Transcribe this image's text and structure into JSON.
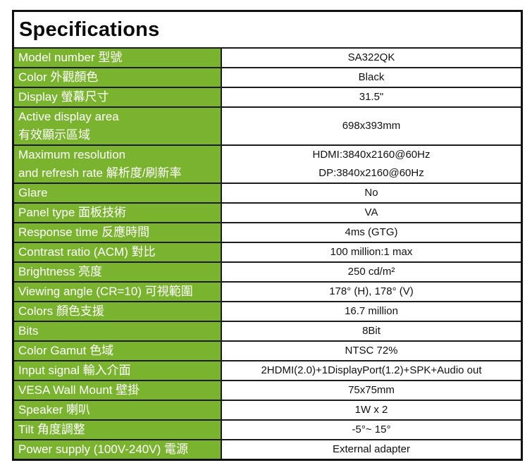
{
  "title": "Specifications",
  "colors": {
    "row_green": "#7AB42F",
    "row_border": "#1C1C1C",
    "outer_border": "#111111",
    "label_text": "#FFFFFF",
    "value_text": "#111111"
  },
  "table": {
    "rows": [
      {
        "label": "Model number 型號",
        "value": "SA322QK"
      },
      {
        "label": "Color 外觀顏色",
        "value": "Black"
      },
      {
        "label": "Display 螢幕尺寸",
        "value": "31.5\""
      },
      {
        "label": "Active display area\n有效顯示區域",
        "value": "698x393mm"
      },
      {
        "label": "Maximum resolution\nand refresh rate 解析度/刷新率",
        "value": "HDMI:3840x2160@60Hz\nDP:3840x2160@60Hz"
      },
      {
        "label": "Glare",
        "value": "No"
      },
      {
        "label": "Panel type 面板技術",
        "value": "VA"
      },
      {
        "label": "Response time 反應時間",
        "value": "4ms (GTG)"
      },
      {
        "label": "Contrast ratio (ACM) 對比",
        "value": "100 million:1 max"
      },
      {
        "label": "Brightness 亮度",
        "value": "250 cd/m²"
      },
      {
        "label": "Viewing angle (CR=10) 可視範圍",
        "value": "178° (H), 178° (V)"
      },
      {
        "label": "Colors 顏色支援",
        "value": "16.7 million"
      },
      {
        "label": "Bits",
        "value": "8Bit"
      },
      {
        "label": "Color Gamut 色域",
        "value": "NTSC 72%"
      },
      {
        "label": "Input signal 輸入介面",
        "value": "2HDMI(2.0)+1DisplayPort(1.2)+SPK+Audio out"
      },
      {
        "label": "VESA Wall Mount 壁掛",
        "value": "75x75mm"
      },
      {
        "label": "Speaker 喇叭",
        "value": "1W x 2"
      },
      {
        "label": "Tilt 角度調整",
        "value": "-5°~ 15°"
      },
      {
        "label": "Power supply (100V-240V) 電源",
        "value": "External adapter"
      }
    ]
  }
}
